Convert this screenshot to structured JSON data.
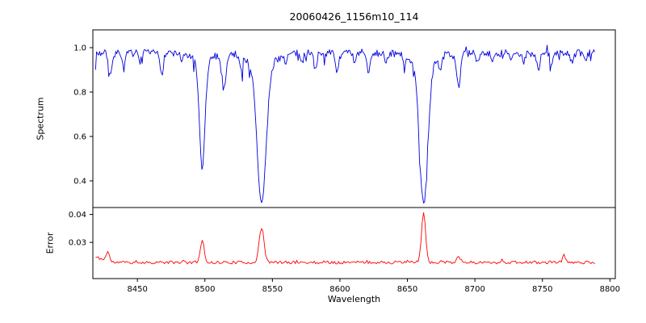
{
  "chart_data": {
    "type": "line",
    "title": "20060426_1156m10_114",
    "xlabel": "Wavelength",
    "xlim": [
      8417,
      8804
    ],
    "x_data_range": [
      8419,
      8789
    ],
    "xticks": [
      {
        "value": 8450,
        "label": "8450"
      },
      {
        "value": 8500,
        "label": "8500"
      },
      {
        "value": 8550,
        "label": "8550"
      },
      {
        "value": 8600,
        "label": "8600"
      },
      {
        "value": 8650,
        "label": "8650"
      },
      {
        "value": 8700,
        "label": "8700"
      },
      {
        "value": 8750,
        "label": "8750"
      },
      {
        "value": 8800,
        "label": "8800"
      }
    ],
    "panels": [
      {
        "name": "spectrum",
        "ylabel": "Spectrum",
        "line_color": "#0000dd",
        "ylim": [
          0.28,
          1.08
        ],
        "yticks": [
          {
            "value": 1.0,
            "label": "1.0"
          },
          {
            "value": 0.8,
            "label": "0.8"
          },
          {
            "value": 0.6,
            "label": "0.6"
          },
          {
            "value": 0.4,
            "label": "0.4"
          }
        ],
        "continuum": 0.975,
        "noise_amp": 0.016,
        "seed": 7,
        "absorption_lines_format": "[center_wavelength_angstrom, depth, sigma_angstrom]",
        "absorption_lines": [
          [
            8430,
            0.1,
            1.2
          ],
          [
            8440,
            0.07,
            1.0
          ],
          [
            8452,
            0.04,
            1.0
          ],
          [
            8468,
            0.09,
            1.2
          ],
          [
            8483,
            0.04,
            1.0
          ],
          [
            8498,
            0.47,
            2.0
          ],
          [
            8498,
            0.05,
            6.0
          ],
          [
            8514,
            0.16,
            1.5
          ],
          [
            8527,
            0.05,
            1.0
          ],
          [
            8542,
            0.62,
            3.3
          ],
          [
            8542,
            0.06,
            9.0
          ],
          [
            8560,
            0.03,
            1.0
          ],
          [
            8572,
            0.04,
            1.0
          ],
          [
            8582,
            0.06,
            1.0
          ],
          [
            8598,
            0.08,
            1.2
          ],
          [
            8611,
            0.05,
            1.0
          ],
          [
            8621,
            0.08,
            1.2
          ],
          [
            8634,
            0.04,
            1.0
          ],
          [
            8648,
            0.05,
            1.0
          ],
          [
            8662,
            0.62,
            3.0
          ],
          [
            8662,
            0.06,
            8.0
          ],
          [
            8674,
            0.06,
            1.0
          ],
          [
            8688,
            0.15,
            1.4
          ],
          [
            8702,
            0.04,
            1.0
          ],
          [
            8713,
            0.05,
            1.0
          ],
          [
            8727,
            0.04,
            1.0
          ],
          [
            8736,
            0.05,
            1.0
          ],
          [
            8747,
            0.07,
            1.2
          ],
          [
            8757,
            0.05,
            1.0
          ],
          [
            8772,
            0.05,
            1.0
          ],
          [
            8782,
            0.04,
            1.0
          ]
        ]
      },
      {
        "name": "error",
        "ylabel": "Error",
        "line_color": "#ff0000",
        "ylim": [
          0.017,
          0.0425
        ],
        "yticks": [
          {
            "value": 0.04,
            "label": "0.04"
          },
          {
            "value": 0.03,
            "label": "0.03"
          }
        ],
        "baseline": 0.0228,
        "noise_amp": 0.00055,
        "seed": 11,
        "peaks_format": "[center_wavelength_angstrom, peak_height, sigma_angstrom]",
        "peaks": [
          [
            8419,
            0.0246,
            5.0
          ],
          [
            8428,
            0.0265,
            1.2
          ],
          [
            8498,
            0.031,
            1.4
          ],
          [
            8542,
            0.0352,
            1.8
          ],
          [
            8662,
            0.0408,
            1.5
          ],
          [
            8688,
            0.0249,
            1.5
          ],
          [
            8766,
            0.0253,
            1.2
          ]
        ]
      }
    ]
  }
}
